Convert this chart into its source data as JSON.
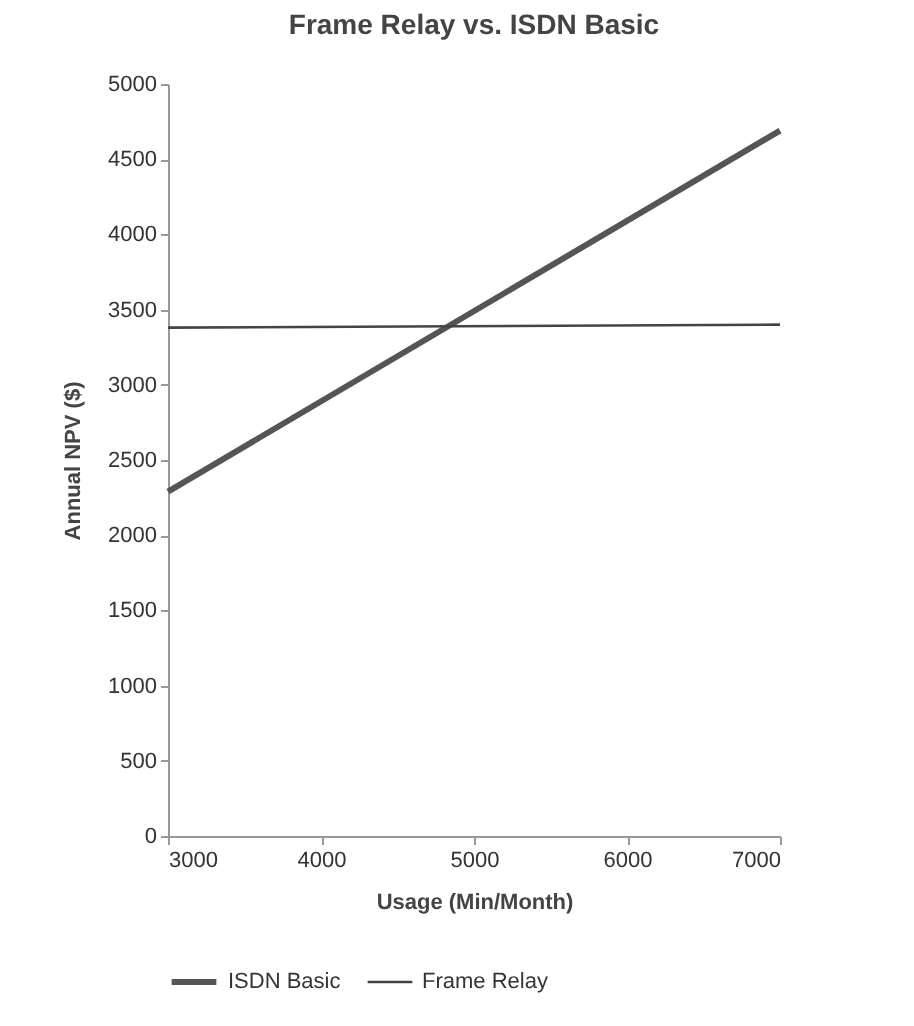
{
  "chart_data": {
    "type": "line",
    "title": "Frame Relay vs. ISDN Basic",
    "xlabel": "Usage (Min/Month)",
    "ylabel": "Annual NPV ($)",
    "x": [
      3000,
      7000
    ],
    "series": [
      {
        "name": "ISDN Basic",
        "color": "#555555",
        "values": [
          2290,
          4690
        ]
      },
      {
        "name": "Frame Relay",
        "color": "#444444",
        "values": [
          3380,
          3400
        ]
      }
    ],
    "xlim": [
      3000,
      7000
    ],
    "xticks": [
      3000,
      4000,
      5000,
      6000,
      7000
    ],
    "ylim": [
      0,
      5000
    ],
    "yticks": [
      0,
      500,
      1000,
      1500,
      2000,
      2500,
      3000,
      3500,
      4000,
      4500,
      5000
    ],
    "grid": false,
    "legend": "bottom",
    "marker": "none",
    "line_style": "solid"
  }
}
